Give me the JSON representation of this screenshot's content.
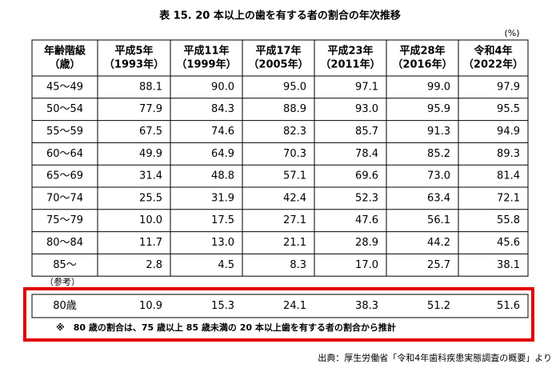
{
  "header": {
    "title": "表 15.  20 本以上の歯を有する者の割合の年次推移",
    "unit": "(%)"
  },
  "table": {
    "columns": [
      [
        "年齢階級",
        "（歳）"
      ],
      [
        "平成5年",
        "（1993年）"
      ],
      [
        "平成11年",
        "（1999年）"
      ],
      [
        "平成17年",
        "（2005年）"
      ],
      [
        "平成23年",
        "（2011年）"
      ],
      [
        "平成28年",
        "（2016年）"
      ],
      [
        "令和4年",
        "（2022年）"
      ]
    ],
    "rows": [
      [
        "45～49",
        "88.1",
        "90.0",
        "95.0",
        "97.1",
        "99.0",
        "97.9"
      ],
      [
        "50～54",
        "77.9",
        "84.3",
        "88.9",
        "93.0",
        "95.9",
        "95.5"
      ],
      [
        "55～59",
        "67.5",
        "74.6",
        "82.3",
        "85.7",
        "91.3",
        "94.9"
      ],
      [
        "60～64",
        "49.9",
        "64.9",
        "70.3",
        "78.4",
        "85.2",
        "89.3"
      ],
      [
        "65～69",
        "31.4",
        "48.8",
        "57.1",
        "69.6",
        "73.0",
        "81.4"
      ],
      [
        "70～74",
        "25.5",
        "31.9",
        "42.4",
        "52.3",
        "63.4",
        "72.1"
      ],
      [
        "75～79",
        "10.0",
        "17.5",
        "27.1",
        "47.6",
        "56.1",
        "55.8"
      ],
      [
        "80～84",
        "11.7",
        "13.0",
        "21.1",
        "28.9",
        "44.2",
        "45.6"
      ],
      [
        "85～",
        "2.8",
        "4.5",
        "8.3",
        "17.0",
        "25.7",
        "38.1"
      ]
    ]
  },
  "reference": {
    "label": "（参考）",
    "row": [
      "80歳",
      "10.9",
      "15.3",
      "24.1",
      "38.3",
      "51.2",
      "51.6"
    ],
    "note": "※　80 歳の割合は、75 歳以上 85 歳未満の 20 本以上歯を有する者の割合から推計"
  },
  "source": "出典：厚生労働省「令和4年歯科疾患実態調査の概要」より"
}
